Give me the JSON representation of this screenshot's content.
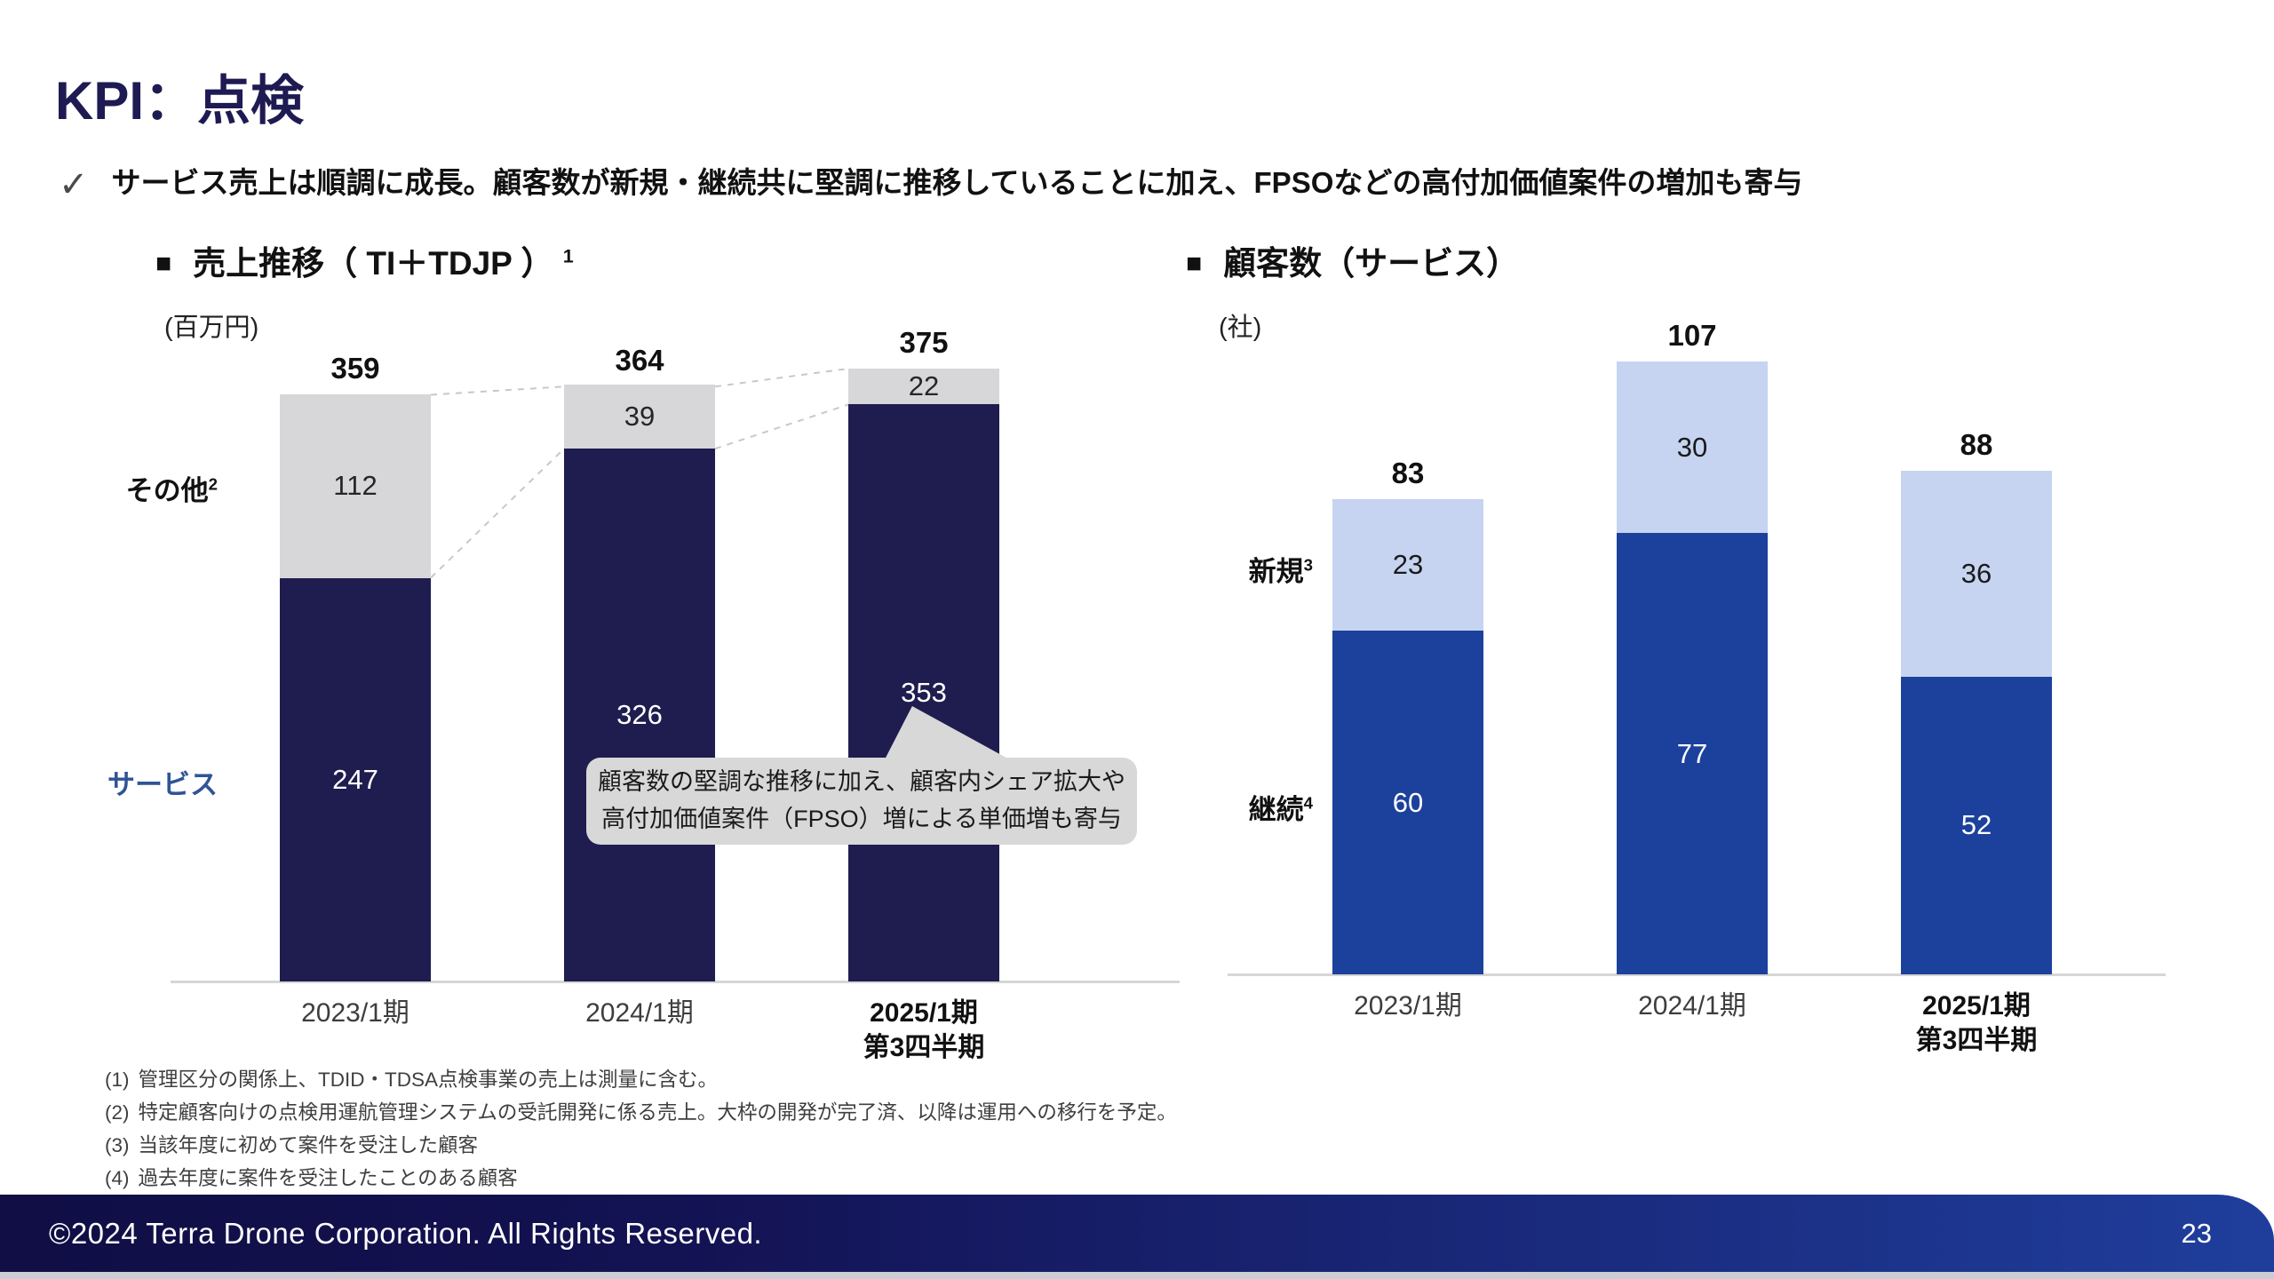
{
  "slide": {
    "title": "KPI：点検",
    "check_glyph": "✓",
    "bullet_glyph": "■",
    "summary": "サービス売上は順調に成長。顧客数が新規・継続共に堅調に推移していることに加え、FPSOなどの高付加価値案件の増加も寄与",
    "copyright": "©2024 Terra Drone Corporation. All Rights Reserved.",
    "page_number": "23"
  },
  "colors": {
    "navy": "#1f1c4f",
    "gray_segment": "#d7d7da",
    "royal_blue": "#1c419c",
    "light_blue": "#c6d4f1",
    "service_label_blue": "#2f5496",
    "axis_gray": "#d6d6d6",
    "callout_bg": "#d8d8d8",
    "footer_gradient_left": "#100e44",
    "footer_gradient_right": "#1f3e9c"
  },
  "chart_data": [
    {
      "id": "revenue",
      "type": "bar",
      "stacked": true,
      "title": "売上推移（ TI＋TDJP ）",
      "title_superscript": "1",
      "unit": "(百万円)",
      "categories": [
        [
          "2023/1期"
        ],
        [
          "2024/1期"
        ],
        [
          "2025/1期",
          "第3四半期"
        ]
      ],
      "category_bold": [
        false,
        false,
        true
      ],
      "series": [
        {
          "name": "サービス",
          "values": [
            247,
            326,
            353
          ],
          "color": "#1f1c4f",
          "value_color": "#ffffff"
        },
        {
          "name": "その他",
          "superscript": "2",
          "values": [
            112,
            39,
            22
          ],
          "color": "#d7d7da",
          "value_color": "#262626"
        }
      ],
      "totals": [
        359,
        364,
        375
      ],
      "ylim": [
        0,
        375
      ],
      "grid": false,
      "legend_position": "left-of-bars",
      "callout": {
        "line1": "顧客数の堅調な推移に加え、顧客内シェア拡大や",
        "line2": "高付加価値案件（FPSO）増による単価増も寄与"
      }
    },
    {
      "id": "customers",
      "type": "bar",
      "stacked": true,
      "title": "顧客数（サービス）",
      "unit": "(社)",
      "categories": [
        [
          "2023/1期"
        ],
        [
          "2024/1期"
        ],
        [
          "2025/1期",
          "第3四半期"
        ]
      ],
      "category_bold": [
        false,
        false,
        true
      ],
      "series": [
        {
          "name": "継続",
          "superscript": "4",
          "values": [
            60,
            77,
            52
          ],
          "color": "#1c419c",
          "value_color": "#ffffff"
        },
        {
          "name": "新規",
          "superscript": "3",
          "values": [
            23,
            30,
            36
          ],
          "color": "#c6d4f1",
          "value_color": "#1a1a1a"
        }
      ],
      "totals": [
        83,
        107,
        88
      ],
      "ylim": [
        0,
        107
      ],
      "grid": false,
      "legend_position": "left-of-bars"
    }
  ],
  "footnotes": [
    {
      "num": "(1)",
      "text": "管理区分の関係上、TDID・TDSA点検事業の売上は測量に含む。"
    },
    {
      "num": "(2)",
      "text": "特定顧客向けの点検用運航管理システムの受託開発に係る売上。大枠の開発が完了済、以降は運用への移行を予定。"
    },
    {
      "num": "(3)",
      "text": "当該年度に初めて案件を受注した顧客"
    },
    {
      "num": "(4)",
      "text": "過去年度に案件を受注したことのある顧客"
    }
  ]
}
